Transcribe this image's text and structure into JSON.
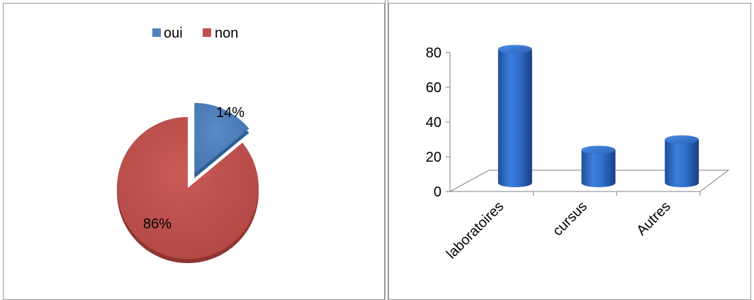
{
  "chart_data": [
    {
      "type": "pie",
      "legend_position": "top",
      "slices": [
        {
          "name": "oui",
          "value": 14,
          "label": "14%",
          "color": "#4f81bd"
        },
        {
          "name": "non",
          "value": 86,
          "label": "86%",
          "color": "#c0504d"
        }
      ]
    },
    {
      "type": "bar",
      "style": "3d-cylinder",
      "color": "#2e6bc6",
      "categories": [
        "laboratoires",
        "cursus",
        "Autres"
      ],
      "values": [
        77,
        19,
        25
      ],
      "ylim": [
        0,
        80
      ],
      "yticks": [
        "0",
        "20",
        "40",
        "60",
        "80"
      ],
      "grid": false,
      "legend": false
    }
  ]
}
